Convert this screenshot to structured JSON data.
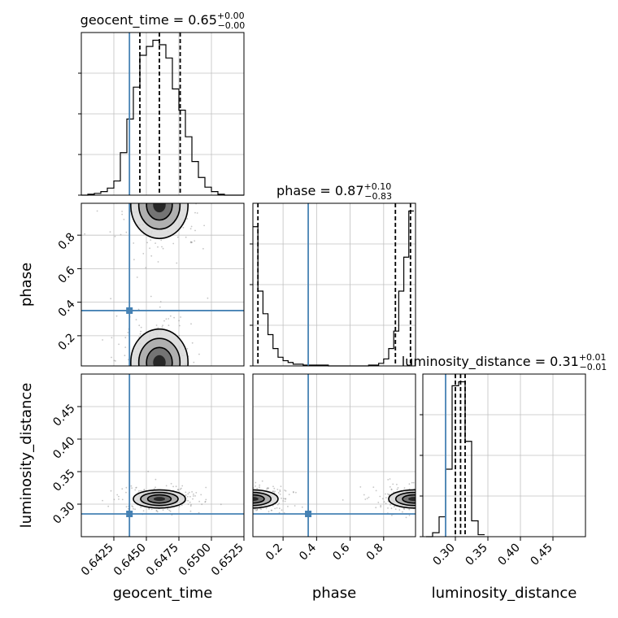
{
  "chart_data": {
    "type": "corner",
    "colors": {
      "truth": "#4682b4",
      "hist": "#000000",
      "grid": "#c0c0c0",
      "scatter": "#7f7f7f"
    },
    "parameters": [
      {
        "name": "geocent_time",
        "label": "geocent_time",
        "truth": 0.6437,
        "range": [
          0.64,
          0.6525
        ],
        "ticks": [
          "0.6425",
          "0.6450",
          "0.6475",
          "0.6500",
          "0.6525"
        ],
        "tick_values": [
          0.6425,
          0.645,
          0.6475,
          0.65,
          0.6525
        ],
        "title_prefix": "geocent_time = 0.65",
        "title_sup": "+0.00",
        "title_sub": "−0.00",
        "quantiles": [
          0.6445,
          0.646,
          0.6476
        ]
      },
      {
        "name": "phase",
        "label": "phase",
        "truth": 0.35,
        "range": [
          0.02,
          0.99
        ],
        "ticks": [
          "0.2",
          "0.4",
          "0.6",
          "0.8"
        ],
        "tick_values": [
          0.2,
          0.4,
          0.6,
          0.8
        ],
        "title_prefix": "phase = 0.87",
        "title_sup": "+0.10",
        "title_sub": "−0.83",
        "quantiles": [
          0.05,
          0.87,
          0.96
        ]
      },
      {
        "name": "luminosity_distance",
        "label": "luminosity_distance",
        "truth": 0.285,
        "range": [
          0.25,
          0.5
        ],
        "ticks": [
          "0.30",
          "0.35",
          "0.40",
          "0.45"
        ],
        "tick_values": [
          0.3,
          0.35,
          0.4,
          0.45
        ],
        "title_prefix": "luminosity_distance = 0.31",
        "title_sup": "+0.01",
        "title_sub": "−0.01",
        "quantiles": [
          0.3,
          0.308,
          0.315
        ]
      }
    ],
    "hist_1d": [
      {
        "bin_edges": [
          0.64,
          0.6405,
          0.641,
          0.6415,
          0.642,
          0.6425,
          0.643,
          0.6435,
          0.644,
          0.6445,
          0.645,
          0.6455,
          0.646,
          0.6465,
          0.647,
          0.6475,
          0.648,
          0.6485,
          0.649,
          0.6495,
          0.65,
          0.6505,
          0.651,
          0.6515,
          0.652,
          0.6525
        ],
        "counts": [
          0,
          1,
          2,
          4,
          8,
          16,
          48,
          86,
          122,
          158,
          168,
          175,
          170,
          155,
          120,
          96,
          66,
          38,
          20,
          9,
          4,
          1,
          0,
          0,
          0
        ]
      },
      {
        "bin_edges": [
          0.02,
          0.05,
          0.08,
          0.11,
          0.14,
          0.17,
          0.2,
          0.23,
          0.26,
          0.29,
          0.32,
          0.35,
          0.38,
          0.41,
          0.44,
          0.47,
          0.5,
          0.53,
          0.56,
          0.59,
          0.62,
          0.65,
          0.68,
          0.71,
          0.74,
          0.77,
          0.8,
          0.83,
          0.86,
          0.89,
          0.92,
          0.95,
          0.98
        ],
        "counts": [
          160,
          86,
          60,
          36,
          20,
          10,
          6,
          4,
          2,
          2,
          1,
          1,
          1,
          1,
          1,
          0,
          0,
          0,
          0,
          0,
          0,
          0,
          0,
          1,
          1,
          3,
          8,
          20,
          40,
          86,
          125,
          178
        ]
      },
      {
        "bin_edges": [
          0.255,
          0.265,
          0.275,
          0.285,
          0.295,
          0.305,
          0.315,
          0.325,
          0.335,
          0.345
        ],
        "counts": [
          0,
          2,
          10,
          34,
          76,
          78,
          48,
          8,
          1
        ]
      }
    ],
    "contours_2d": [
      {
        "pair": [
          "geocent_time",
          "phase"
        ],
        "blobs": [
          {
            "cx": 0.646,
            "cy": 0.98,
            "rx": 0.0022,
            "ry": 0.2
          },
          {
            "cx": 0.646,
            "cy": 0.04,
            "rx": 0.0022,
            "ry": 0.2
          }
        ]
      },
      {
        "pair": [
          "geocent_time",
          "luminosity_distance"
        ],
        "blobs": [
          {
            "cx": 0.646,
            "cy": 0.308,
            "rx": 0.002,
            "ry": 0.014
          }
        ]
      },
      {
        "pair": [
          "phase",
          "luminosity_distance"
        ],
        "blobs": [
          {
            "cx": 0.02,
            "cy": 0.308,
            "rx": 0.15,
            "ry": 0.014
          },
          {
            "cx": 0.98,
            "cy": 0.308,
            "rx": 0.15,
            "ry": 0.014
          }
        ]
      }
    ],
    "grid": true
  }
}
